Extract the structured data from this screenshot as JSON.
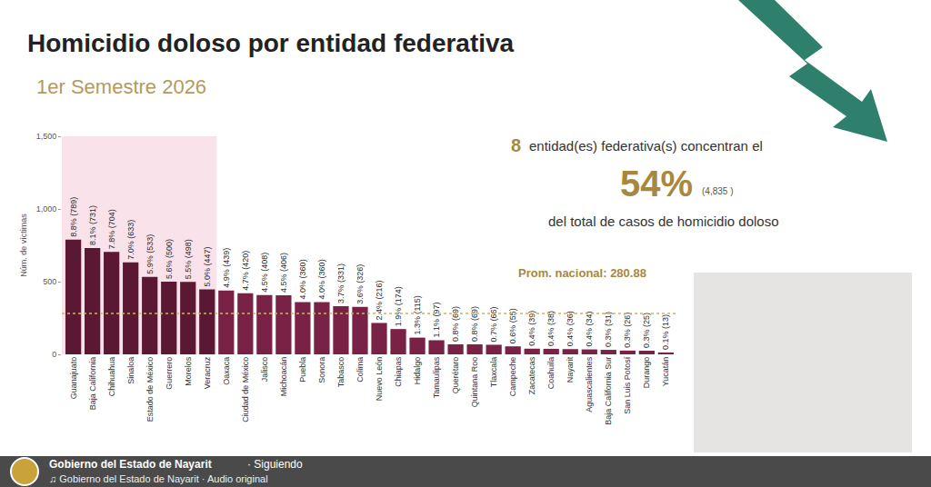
{
  "chart_data": {
    "type": "bar",
    "title": "Homicidio doloso por entidad federativa",
    "subtitle": "1er Semestre 2026",
    "y_label": "Núm. de víctimas",
    "categories": [
      "Guanajuato",
      "Baja California",
      "Chihuahua",
      "Sinaloa",
      "Estado de México",
      "Guerrero",
      "Morelos",
      "Veracruz",
      "Oaxaca",
      "Ciudad de México",
      "Jalisco",
      "Michoacán",
      "Puebla",
      "Sonora",
      "Tabasco",
      "Colima",
      "Nuevo León",
      "Chiapas",
      "Hidalgo",
      "Tamaulipas",
      "Querétaro",
      "Quintana Roo",
      "Tlaxcala",
      "Campeche",
      "Zacatecas",
      "Coahuila",
      "Nayarit",
      "Aguascalientes",
      "Baja California Sur",
      "San Luis Potosí",
      "Durango",
      "Yucatán"
    ],
    "values": [
      789,
      731,
      704,
      633,
      533,
      500,
      498,
      447,
      439,
      420,
      408,
      406,
      360,
      360,
      331,
      326,
      216,
      174,
      115,
      97,
      69,
      69,
      66,
      55,
      39,
      38,
      36,
      34,
      31,
      26,
      25,
      13
    ],
    "value_labels": [
      "8.8% (789)",
      "8.1% (731)",
      "7.8% (704)",
      "7.0% (633)",
      "5.9% (533)",
      "5.6% (500)",
      "5.5% (498)",
      "5.0% (447)",
      "4.9% (439)",
      "4.7% (420)",
      "4.5% (408)",
      "4.5% (406)",
      "4.0% (360)",
      "4.0% (360)",
      "3.7% (331)",
      "3.6% (326)",
      "2.4% (216)",
      "1.9% (174)",
      "1.3% (115)",
      "1.1% (97)",
      "0.8% (69)",
      "0.8% (69)",
      "0.7% (66)",
      "0.6% (55)",
      "0.4% (39)",
      "0.4% (38)",
      "0.4% (36)",
      "0.4% (34)",
      "0.3% (31)",
      "0.3% (26)",
      "0.3% (25)",
      "0.1% (13)"
    ],
    "colors": [
      "#5a1832",
      "#5a1832",
      "#5a1832",
      "#5a1832",
      "#5a1832",
      "#5a1832",
      "#5a1832",
      "#5a1832",
      "#7a2245",
      "#7a2245",
      "#7a2245",
      "#7a2245",
      "#7a2245",
      "#7a2245",
      "#7a2245",
      "#7a2245",
      "#7a2245",
      "#7a2245",
      "#7a2245",
      "#7a2245",
      "#7a2245",
      "#7a2245",
      "#7a2245",
      "#7a2245",
      "#7a2245",
      "#7a2245",
      "#7a2245",
      "#7a2245",
      "#7a2245",
      "#7a2245",
      "#7a2245",
      "#7a2245"
    ],
    "highlighted_categories": 8,
    "ylim": [
      0,
      1500
    ],
    "yticks": [
      0,
      500,
      {
        "value": 1000,
        "label": "1,000"
      },
      {
        "value": 1500,
        "label": "1,500"
      }
    ],
    "grid": false,
    "data_labels": true,
    "average": {
      "value": 280.88,
      "label": "Prom. nacional: 280.88"
    },
    "summary": {
      "count": "8",
      "text_top": "entidad(es) federativa(s) concentran el",
      "percent": "54%",
      "total": "(4,835 )",
      "text_bottom": "del total de casos de homicidio doloso"
    },
    "footer": {
      "account": "Gobierno del Estado de Nayarit",
      "follow": "· Siguiendo",
      "audio": "♫ Gobierno del Estado de Nayarit · Audio original"
    }
  }
}
